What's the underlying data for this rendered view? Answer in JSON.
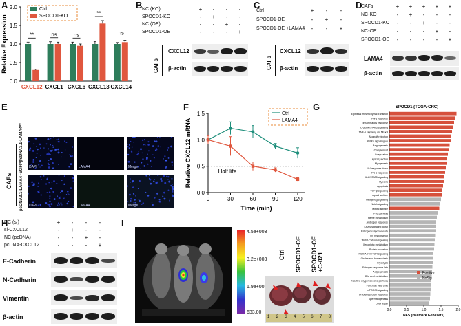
{
  "panels": {
    "A": "A",
    "B": "B",
    "C": "C",
    "D": "D",
    "E": "E",
    "F": "F",
    "G": "G",
    "H": "H",
    "I": "I"
  },
  "colors": {
    "ctrl": "#2e7d5b",
    "ko": "#e0573e",
    "positive": "#d6503c",
    "nosig": "#b5b5b5",
    "orange_box": "#e88b3a"
  },
  "chart_a": {
    "type": "bar",
    "ylabel": "Relative Expression",
    "ylim": [
      0,
      2.0
    ],
    "yticks": [
      "0.0",
      "0.5",
      "1.0",
      "1.5",
      "2.0"
    ],
    "categories": [
      "CXCL12",
      "CXCL1",
      "CXCL6",
      "CXCL13",
      "CXCL14"
    ],
    "series": [
      {
        "name": "Ctrl",
        "values": [
          1.0,
          1.0,
          1.0,
          1.0,
          1.0
        ],
        "errors": [
          0.05,
          0.06,
          0.05,
          0.07,
          0.04
        ]
      },
      {
        "name": "SPOCD1-KO",
        "values": [
          0.3,
          1.0,
          0.95,
          1.55,
          1.05
        ],
        "errors": [
          0.02,
          0.05,
          0.05,
          0.08,
          0.05
        ]
      }
    ],
    "sig": [
      "**",
      "ns",
      "ns",
      "**",
      "ns"
    ]
  },
  "blot_b": {
    "rows": [
      "NC (KO)",
      "SPOCD1-KO",
      "NC (OE)",
      "SPOCD1-OE"
    ],
    "pm": [
      [
        "+",
        "-",
        "-",
        "-"
      ],
      [
        "-",
        "+",
        "-",
        "-"
      ],
      [
        "-",
        "-",
        "+",
        "-"
      ],
      [
        "-",
        "-",
        "-",
        "+"
      ]
    ],
    "bands": [
      "CXCL12",
      "β-actin"
    ],
    "side": "CAFs"
  },
  "blot_c": {
    "rows": [
      "Ctrl",
      "SPOCD1-OE",
      "SPOCD1-OE +LAMA4"
    ],
    "pm": [
      [
        "+",
        "-",
        "-"
      ],
      [
        "-",
        "+",
        "-"
      ],
      [
        "-",
        "-",
        "+"
      ]
    ],
    "bands": [
      "CXCL12",
      "β-actin"
    ],
    "side": "CAFs"
  },
  "blot_d": {
    "rows": [
      "CAFs",
      "NC-KO",
      "SPOCD1-KO",
      "NC-OE",
      "SPOCD1-OE"
    ],
    "pm": [
      [
        "+",
        "+",
        "+",
        "+",
        "+"
      ],
      [
        "-",
        "+",
        "-",
        "-",
        "-"
      ],
      [
        "-",
        "-",
        "+",
        "-",
        "-"
      ],
      [
        "-",
        "-",
        "-",
        "+",
        "-"
      ],
      [
        "-",
        "-",
        "-",
        "-",
        "+"
      ]
    ],
    "bands": [
      "LAMA4",
      "β-actin"
    ]
  },
  "panel_e": {
    "side": "CAFs",
    "row1": "pcDNA3.1-LAMA4ᵐᵗ",
    "row2": "pcDNA3.1-LAMA4 -EGFPᵐᵗ",
    "cols": [
      "DAPI",
      "LAMA4",
      "Merge"
    ]
  },
  "chart_f": {
    "type": "line",
    "ylabel": "Relative CXCL12 mRNA",
    "xlabel": "Time (min)",
    "x": [
      0,
      30,
      60,
      90,
      120
    ],
    "xticks": [
      "0",
      "30",
      "60",
      "90",
      "120"
    ],
    "yticks": [
      "0.0",
      "0.5",
      "1.0",
      "1.5"
    ],
    "ylim": [
      0,
      1.5
    ],
    "series": [
      {
        "name": "Ctrl",
        "values": [
          1.0,
          1.22,
          1.15,
          0.88,
          0.75
        ],
        "errors": [
          0.08,
          0.12,
          0.12,
          0.05,
          0.1
        ]
      },
      {
        "name": "LAMA4",
        "values": [
          1.0,
          0.88,
          0.5,
          0.43,
          0.25
        ],
        "errors": [
          0.08,
          0.18,
          0.08,
          0.04,
          0.03
        ]
      }
    ],
    "half_life_label": "Half life",
    "half_life_value": 0.5
  },
  "chart_g": {
    "type": "bar",
    "title": "SPOCD1 (TCGA-CRC)",
    "xlabel": "NES (Hallmark Genesets)",
    "xlim": [
      0,
      2.0
    ],
    "xticks": [
      "0.0",
      "0.5",
      "1.0",
      "1.5",
      "2.0"
    ],
    "legend": [
      "Positive",
      "NoSig"
    ],
    "categories": [
      "Epithelial mesenchymal transition",
      "IFN-γ response",
      "Inflammatory response",
      "IL-6/JAK/STAT3 signaling",
      "TNF-α signaling via NF-κB",
      "Allograft rejection",
      "KRAS signaling up",
      "Angiogenesis",
      "Complement",
      "Coagulation",
      "Apical junction",
      "Myogenesis",
      "UV response down",
      "IFN-α response",
      "IL-2/STAT5 signaling",
      "Hypoxia",
      "Apoptosis",
      "TGF-β signaling",
      "Apical surface",
      "Hedgehog signaling",
      "Notch signaling",
      "Mitotic spindle",
      "P53 pathway",
      "Heme metabolism",
      "Androgen response",
      "KRAS signaling down",
      "Estrogen response early",
      "UV response up",
      "Wnt/β-Catenin signaling",
      "Xenobiotic metabolism",
      "Protein secretion",
      "PI3K/AKT/mTOR signaling",
      "Cholesterol homeostasis",
      "Glycolysis",
      "Estrogen response late",
      "Adipogenesis",
      "Bile acid metabolism",
      "Reactive oxygen species pathway",
      "Pancreas beta cells",
      "mTORC1 signaling",
      "Unfolded protein response",
      "Spermatogenesis",
      "DNA repair"
    ],
    "values": [
      1.95,
      1.9,
      1.88,
      1.85,
      1.82,
      1.8,
      1.78,
      1.75,
      1.72,
      1.7,
      1.68,
      1.66,
      1.64,
      1.62,
      1.6,
      1.58,
      1.56,
      1.54,
      1.52,
      1.5,
      1.48,
      1.45,
      1.4,
      1.38,
      1.36,
      1.35,
      1.34,
      1.33,
      1.32,
      1.31,
      1.3,
      1.28,
      1.27,
      1.26,
      1.25,
      1.24,
      1.23,
      1.22,
      1.21,
      1.2,
      1.19,
      1.18,
      1.16
    ],
    "significance": [
      "Positive",
      "Positive",
      "Positive",
      "Positive",
      "Positive",
      "Positive",
      "Positive",
      "Positive",
      "Positive",
      "Positive",
      "Positive",
      "Positive",
      "Positive",
      "Positive",
      "Positive",
      "Positive",
      "Positive",
      "Positive",
      "Positive",
      "NoSig",
      "NoSig",
      "Positive",
      "NoSig",
      "NoSig",
      "NoSig",
      "NoSig",
      "NoSig",
      "NoSig",
      "NoSig",
      "NoSig",
      "NoSig",
      "NoSig",
      "NoSig",
      "NoSig",
      "NoSig",
      "NoSig",
      "NoSig",
      "NoSig",
      "NoSig",
      "NoSig",
      "NoSig",
      "NoSig",
      "NoSig"
    ]
  },
  "blot_h": {
    "rows": [
      "NC (si)",
      "si-CXCL12",
      "NC (pcDNA)",
      "pcDNA-CXCL12"
    ],
    "pm": [
      [
        "+",
        "-",
        "-",
        "-"
      ],
      [
        "-",
        "+",
        "-",
        "-"
      ],
      [
        "-",
        "-",
        "+",
        "-"
      ],
      [
        "-",
        "-",
        "-",
        "+"
      ]
    ],
    "bands": [
      "E-Cadherin",
      "N-Cadherin",
      "Vimentin",
      "β-actin"
    ]
  },
  "panel_i": {
    "scale_ticks": [
      "4.5e+003",
      "3.2e+003",
      "1.9e+003",
      "633.00"
    ],
    "groups": [
      "Ctrl",
      "SPOCD1-OE",
      "SPOCD1-OE +C-021"
    ],
    "ruler": [
      "1",
      "2",
      "3",
      "4",
      "5",
      "6",
      "7",
      "8"
    ]
  }
}
